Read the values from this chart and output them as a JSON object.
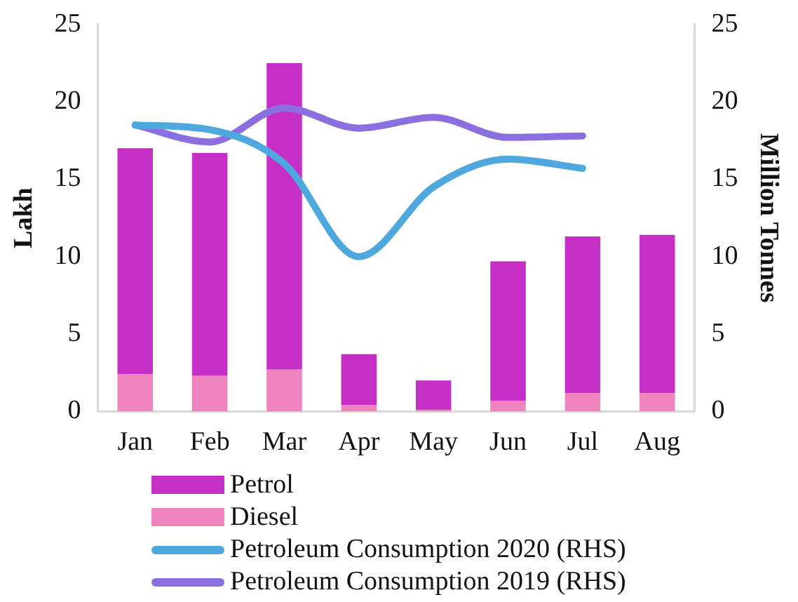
{
  "chart_data": {
    "type": "bar",
    "stacked": true,
    "ylabel": "Lakh",
    "y2label": "Million Tonnes",
    "categories": [
      "Jan",
      "Feb",
      "Mar",
      "Apr",
      "May",
      "Jun",
      "Jul",
      "Aug"
    ],
    "series": [
      {
        "name": "Diesel",
        "color": "#ef83bd",
        "values": [
          2.4,
          2.3,
          2.7,
          0.4,
          0.1,
          0.7,
          1.2,
          1.2
        ]
      },
      {
        "name": "Petrol",
        "color": "#c62fc6",
        "values": [
          14.6,
          14.4,
          19.8,
          3.3,
          1.9,
          9.0,
          10.1,
          10.2
        ]
      },
      {
        "name": "Petroleum Consumption 2020 (RHS)",
        "type": "line",
        "axis": "y2",
        "color": "#4ea8de",
        "values": [
          18.5,
          18.2,
          16.0,
          10.0,
          14.5,
          16.3,
          15.7,
          null
        ]
      },
      {
        "name": "Petroleum Consumption 2019 (RHS)",
        "type": "line",
        "axis": "y2",
        "color": "#8b6fe0",
        "values": [
          18.5,
          17.4,
          19.6,
          18.3,
          19.0,
          17.7,
          17.8,
          null
        ]
      }
    ],
    "ylim": [
      0,
      25
    ],
    "yticks": [
      0,
      5,
      10,
      15,
      20,
      25
    ],
    "y2lim": [
      0,
      25
    ],
    "y2ticks": [
      0,
      5,
      10,
      15,
      20,
      25
    ],
    "grid": false,
    "legend": "bottom",
    "marker": "none"
  }
}
